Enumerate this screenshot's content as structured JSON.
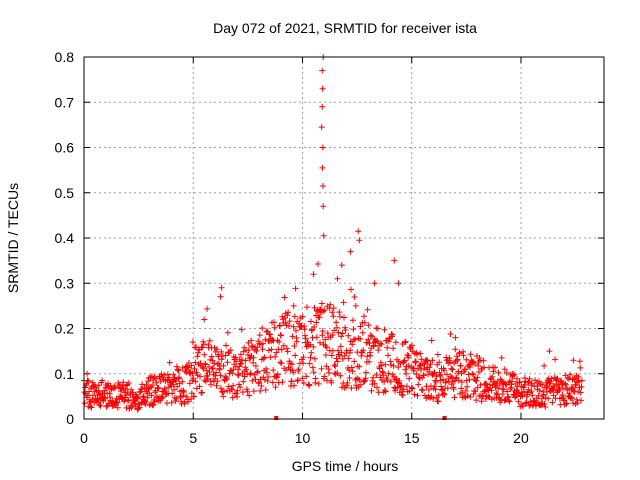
{
  "chart_data": {
    "type": "scatter",
    "title": "Day 072 of 2021, SRMTID for receiver ista",
    "xlabel": "GPS time / hours",
    "ylabel": "SRMTID / TECUs",
    "xlim": [
      0,
      23.8
    ],
    "ylim": [
      0,
      0.8
    ],
    "xticks": [
      0,
      5,
      10,
      15,
      20
    ],
    "yticks": [
      0,
      0.1,
      0.2,
      0.3,
      0.4,
      0.5,
      0.6,
      0.7,
      0.8
    ],
    "grid": true,
    "marker": "+",
    "color": "#ff0000",
    "series": [
      {
        "name": "SRMTID",
        "base_profile": [
          [
            0.0,
            0.055
          ],
          [
            1.0,
            0.055
          ],
          [
            2.0,
            0.05
          ],
          [
            2.5,
            0.045
          ],
          [
            3.0,
            0.06
          ],
          [
            4.0,
            0.07
          ],
          [
            4.7,
            0.075
          ],
          [
            5.2,
            0.12
          ],
          [
            6.0,
            0.11
          ],
          [
            7.0,
            0.1
          ],
          [
            8.0,
            0.12
          ],
          [
            9.0,
            0.15
          ],
          [
            10.0,
            0.16
          ],
          [
            10.8,
            0.17
          ],
          [
            11.5,
            0.16
          ],
          [
            12.5,
            0.14
          ],
          [
            13.5,
            0.13
          ],
          [
            14.5,
            0.12
          ],
          [
            15.5,
            0.09
          ],
          [
            16.2,
            0.08
          ],
          [
            17.0,
            0.1
          ],
          [
            18.0,
            0.09
          ],
          [
            19.0,
            0.07
          ],
          [
            20.0,
            0.06
          ],
          [
            21.0,
            0.055
          ],
          [
            22.0,
            0.065
          ],
          [
            22.8,
            0.07
          ]
        ],
        "peaks": [
          {
            "x": 10.95,
            "y": 0.8
          },
          {
            "x": 10.9,
            "y": 0.77
          },
          {
            "x": 10.92,
            "y": 0.73
          },
          {
            "x": 10.9,
            "y": 0.69
          },
          {
            "x": 10.88,
            "y": 0.645
          },
          {
            "x": 10.93,
            "y": 0.6
          },
          {
            "x": 10.91,
            "y": 0.555
          },
          {
            "x": 10.94,
            "y": 0.515
          },
          {
            "x": 10.95,
            "y": 0.47
          },
          {
            "x": 10.97,
            "y": 0.405
          },
          {
            "x": 12.55,
            "y": 0.415
          },
          {
            "x": 12.6,
            "y": 0.395
          },
          {
            "x": 12.2,
            "y": 0.37
          },
          {
            "x": 14.2,
            "y": 0.35
          },
          {
            "x": 14.4,
            "y": 0.3
          },
          {
            "x": 6.3,
            "y": 0.29
          },
          {
            "x": 6.25,
            "y": 0.27
          },
          {
            "x": 11.8,
            "y": 0.34
          },
          {
            "x": 11.6,
            "y": 0.31
          },
          {
            "x": 10.5,
            "y": 0.32
          },
          {
            "x": 13.3,
            "y": 0.3
          },
          {
            "x": 5.5,
            "y": 0.22
          },
          {
            "x": 9.6,
            "y": 0.25
          },
          {
            "x": 15.7,
            "y": 0.13
          },
          {
            "x": 17.0,
            "y": 0.18
          },
          {
            "x": 21.3,
            "y": 0.15
          },
          {
            "x": 22.4,
            "y": 0.13
          }
        ],
        "zero_markers": [
          8.8,
          16.5
        ]
      }
    ]
  }
}
